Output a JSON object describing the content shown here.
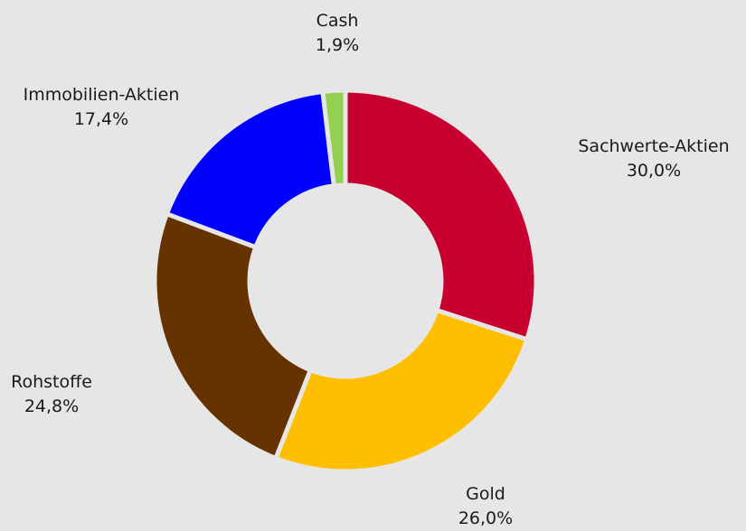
{
  "chart_data": {
    "type": "donut",
    "title": "",
    "slices": [
      {
        "label": "Sachwerte-Aktien",
        "value_text": "30,0%",
        "value": 30.0,
        "color": "#c8002f"
      },
      {
        "label": "Gold",
        "value_text": "26,0%",
        "value": 26.0,
        "color": "#ffbf00"
      },
      {
        "label": "Rohstoffe",
        "value_text": "24,8%",
        "value": 24.8,
        "color": "#663300"
      },
      {
        "label": "Immobilien-Aktien",
        "value_text": "17,4%",
        "value": 17.4,
        "color": "#0000ff"
      },
      {
        "label": "Cash",
        "value_text": "1,9%",
        "value": 1.9,
        "color": "#92d050"
      }
    ],
    "legend": "none",
    "background": "#e6e6e6"
  }
}
